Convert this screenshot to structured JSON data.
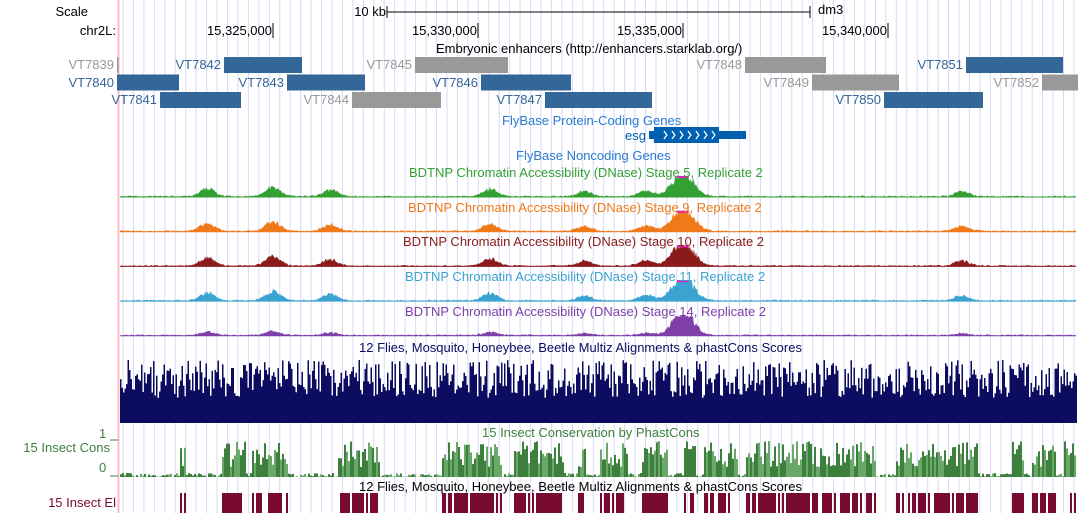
{
  "header": {
    "scale_label": "Scale",
    "scale_bar_label": "10 kb",
    "assembly": "dm3",
    "chrom_label": "chr2L:",
    "ticks": [
      {
        "pos": 15325000,
        "label": "15,325,000"
      },
      {
        "pos": 15330000,
        "label": "15,330,000"
      },
      {
        "pos": 15335000,
        "label": "15,335,000"
      },
      {
        "pos": 15340000,
        "label": "15,340,000"
      }
    ]
  },
  "view": {
    "start": 15321268,
    "end": 15344585
  },
  "colors": {
    "blue": "#336699",
    "gray": "#999999",
    "grid": "#d8d8f8",
    "left_border": "#ffbbbb"
  },
  "enhancers": {
    "title": "Embryonic enhancers (http://enhancers.starklab.org/)",
    "items": [
      {
        "name": "VT7839",
        "row": 0,
        "start": 15321195,
        "end": 15321230,
        "active": false
      },
      {
        "name": "VT7842",
        "row": 0,
        "start": 15323805,
        "end": 15325707,
        "active": true
      },
      {
        "name": "VT7845",
        "row": 0,
        "start": 15328463,
        "end": 15330731,
        "active": false
      },
      {
        "name": "VT7848",
        "row": 0,
        "start": 15336512,
        "end": 15338488,
        "active": false
      },
      {
        "name": "VT7851",
        "row": 0,
        "start": 15341902,
        "end": 15344268,
        "active": true
      },
      {
        "name": "VT7840",
        "row": 1,
        "start": 15321195,
        "end": 15322707,
        "active": true
      },
      {
        "name": "VT7843",
        "row": 1,
        "start": 15325341,
        "end": 15327244,
        "active": true
      },
      {
        "name": "VT7846",
        "row": 1,
        "start": 15330073,
        "end": 15332268,
        "active": true
      },
      {
        "name": "VT7849",
        "row": 1,
        "start": 15338146,
        "end": 15340268,
        "active": false
      },
      {
        "name": "VT7852",
        "row": 1,
        "start": 15343756,
        "end": 15344634,
        "active": false
      },
      {
        "name": "VT7841",
        "row": 2,
        "start": 15322244,
        "end": 15324219,
        "active": true
      },
      {
        "name": "VT7844",
        "row": 2,
        "start": 15326927,
        "end": 15329097,
        "active": false
      },
      {
        "name": "VT7847",
        "row": 2,
        "start": 15331634,
        "end": 15334243,
        "active": true
      },
      {
        "name": "VT7850",
        "row": 2,
        "start": 15339902,
        "end": 15342317,
        "active": true
      }
    ]
  },
  "genes": {
    "title": "FlyBase Protein-Coding Genes",
    "gene": {
      "name": "esg",
      "start": 15334170,
      "end": 15336536,
      "thick_start": 15334290,
      "thick_end": 15335877,
      "strand": "+"
    },
    "color": "#0060b0"
  },
  "noncoding": {
    "title": "FlyBase Noncoding Genes",
    "color": "#2a7ad0"
  },
  "dnase": [
    {
      "title": "BDTNP Chromatin Accessibility (DNase) Stage 5, Replicate 2",
      "color": "#33a033"
    },
    {
      "title": "BDTNP Chromatin Accessibility (DNase) Stage 9, Replicate 2",
      "color": "#f07a1a"
    },
    {
      "title": "BDTNP Chromatin Accessibility (DNase) Stage 10, Replicate 2",
      "color": "#8b1a1a"
    },
    {
      "title": "BDTNP Chromatin Accessibility (DNase) Stage 11, Replicate 2",
      "color": "#3ba3d0"
    },
    {
      "title": "BDTNP Chromatin Accessibility (DNase) Stage 14, Replicate 2",
      "color": "#7e3fa8"
    }
  ],
  "multiz": {
    "title": "12 Flies, Mosquito, Honeybee, Beetle Multiz Alignments & phastCons Scores",
    "color": "#0c0c60"
  },
  "cons": {
    "title": "15 Insect Conservation by PhastCons",
    "label": "15 Insect Cons",
    "max": "1",
    "min": "0",
    "color": "#3d803d"
  },
  "elements": {
    "title": "12 Flies, Mosquito, Honeybee, Beetle Multiz Alignments & phastCons Scores",
    "label": "15 Insect El",
    "color": "#780a30"
  }
}
